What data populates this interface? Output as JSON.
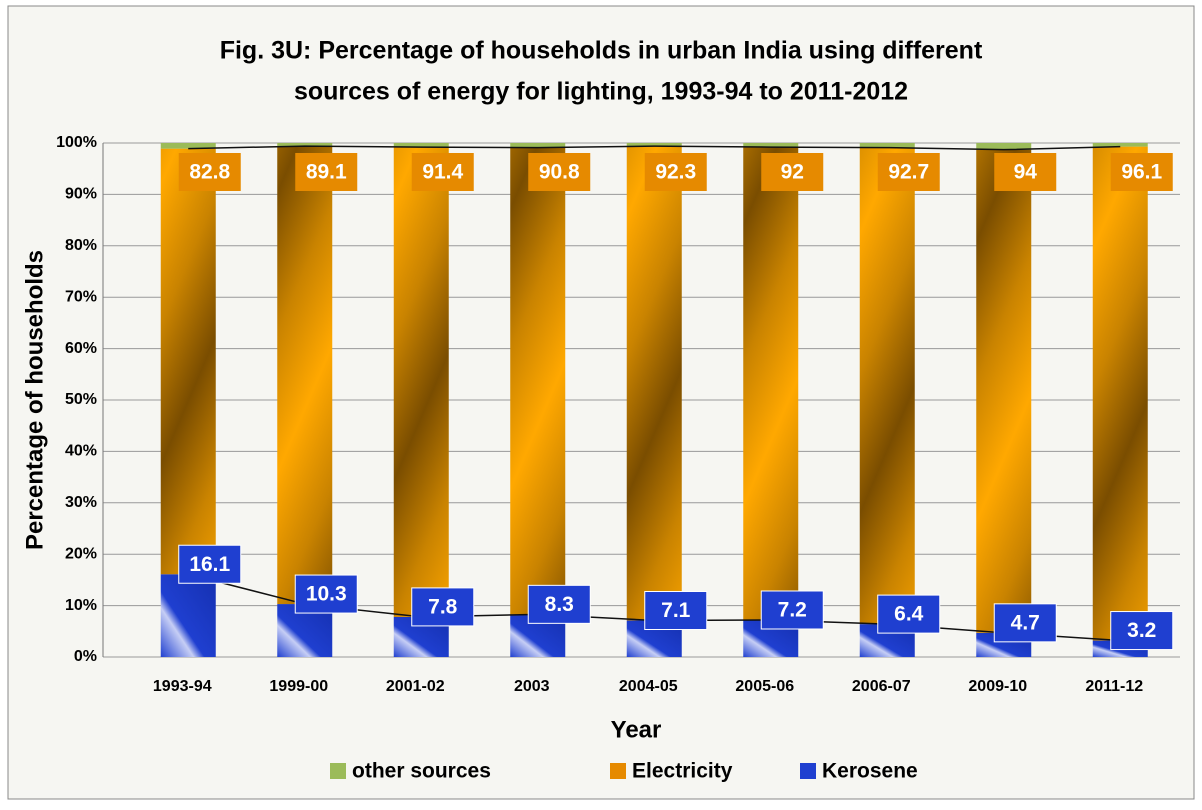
{
  "chart_data": {
    "type": "stacked_bar",
    "title": "Fig. 3U: Percentage of households in urban India using different",
    "subtitle": "sources of energy for lighting, 1993-94 to 2011-2012",
    "x_label": "Year",
    "y_label": "Percentage of households",
    "categories": [
      "1993-94",
      "1999-00",
      "2001-02",
      "2003",
      "2004-05",
      "2005-06",
      "2006-07",
      "2009-10",
      "2011-12"
    ],
    "series": [
      {
        "name": "Kerosene",
        "color": "#1f3fd0",
        "values": [
          16.1,
          10.3,
          7.8,
          8.3,
          7.1,
          7.2,
          6.4,
          4.7,
          3.2
        ]
      },
      {
        "name": "Electricity",
        "color": "#e68a00",
        "values": [
          82.8,
          89.1,
          91.4,
          90.8,
          92.3,
          92,
          92.7,
          94,
          96.1
        ]
      },
      {
        "name": "other sources",
        "color": "#9bbb59",
        "values": [
          1.1,
          0.6,
          0.8,
          0.9,
          0.6,
          0.8,
          0.9,
          1.3,
          0.7
        ]
      }
    ],
    "legend_order": [
      2,
      1,
      0
    ],
    "ylim": [
      0,
      100
    ],
    "yticks": [
      {
        "value": 0,
        "label": "0%"
      },
      {
        "value": 10,
        "label": "10%"
      },
      {
        "value": 20,
        "label": "20%"
      },
      {
        "value": 30,
        "label": "30%"
      },
      {
        "value": 40,
        "label": "40%"
      },
      {
        "value": 50,
        "label": "50%"
      },
      {
        "value": 60,
        "label": "60%"
      },
      {
        "value": 70,
        "label": "70%"
      },
      {
        "value": 80,
        "label": "80%"
      },
      {
        "value": 90,
        "label": "90%"
      },
      {
        "value": 100,
        "label": "100%"
      }
    ],
    "grid": true
  }
}
